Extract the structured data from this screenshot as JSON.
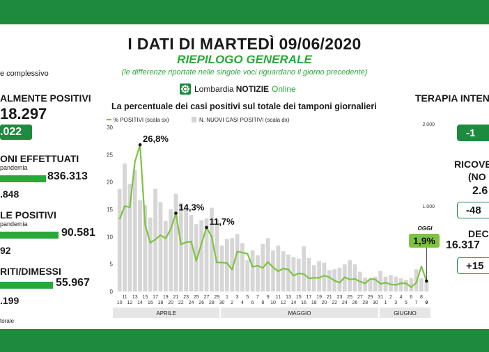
{
  "header": {
    "title": "I DATI DI MARTEDÌ 09/06/2020",
    "subtitle": "RIEPILOGO GENERALE",
    "note": "(le differenze riportate nelle singole voci riguardano il giorno precedente)",
    "logo": {
      "brand": "Lombardia",
      "bold": "NOTIZIE",
      "online": "Online"
    }
  },
  "left_panel": {
    "caption_top": "e complessivo",
    "attualmente_positivi": {
      "label": "ALMENTE POSITIVI",
      "value": "18.297",
      "diff": ".022"
    },
    "tamponi": {
      "label": "ONI EFFETTUATI",
      "sub": "pandemia",
      "value": "836.313",
      "diff": ".848"
    },
    "totale_positivi": {
      "label": "LE POSITIVI",
      "sub": "pandemia",
      "value": "90.581",
      "diff": "92"
    },
    "guariti": {
      "label": "RITI/DIMESSI",
      "value": "55.967",
      "diff": ".199"
    },
    "footer": "torale"
  },
  "right_panel": {
    "terapia": {
      "label": "TERAPIA INTEN",
      "diff": "-1"
    },
    "ricoverati": {
      "label": "RICOVE",
      "label2": "(NO",
      "value": "2.6",
      "diff": "-48"
    },
    "decessi": {
      "label": "DEC",
      "value": "16.317",
      "diff": "+15"
    }
  },
  "chart_data": {
    "type": "bar+line",
    "title": "La percentuale dei casi positivi sul totale dei tamponi giornalieri",
    "legend": [
      {
        "name": "% POSITIVI (scala sx)",
        "color": "#7dc242"
      },
      {
        "name": "N. NUOVI CASI POSITIVI (scala dx)",
        "color": "#d3d3d3"
      }
    ],
    "y_left": {
      "range": [
        0,
        30
      ],
      "ticks": [
        0,
        5,
        10,
        15,
        20,
        25,
        30
      ]
    },
    "y_right": {
      "range": [
        0,
        2000
      ],
      "ticks": [
        "1.000",
        "2.000"
      ]
    },
    "x_top_labels": [
      "11",
      "13",
      "15",
      "17",
      "19",
      "21",
      "23",
      "25",
      "27",
      "29",
      "1",
      "3",
      "5",
      "7",
      "9",
      "11",
      "13",
      "15",
      "17",
      "19",
      "21",
      "23",
      "25",
      "27",
      "29",
      "31",
      "2",
      "4",
      "6",
      "8"
    ],
    "x_bottom_labels": [
      "10",
      "12",
      "14",
      "16",
      "18",
      "20",
      "22",
      "24",
      "26",
      "28",
      "30",
      "2",
      "4",
      "6",
      "8",
      "10",
      "12",
      "14",
      "16",
      "18",
      "20",
      "22",
      "24",
      "26",
      "28",
      "30",
      "1",
      "3",
      "5",
      "7",
      "9"
    ],
    "months": [
      "APRILE",
      "MAGGIO",
      "GIUGNO"
    ],
    "bars": [
      1250,
      1560,
      1310,
      1480,
      1110,
      1050,
      900,
      1250,
      1090,
      860,
      1000,
      1190,
      1080,
      1020,
      930,
      820,
      870,
      890,
      1020,
      880,
      560,
      640,
      650,
      700,
      590,
      380,
      500,
      440,
      580,
      650,
      500,
      560,
      490,
      450,
      420,
      400,
      550,
      410,
      320,
      370,
      350,
      260,
      270,
      290,
      330,
      380,
      330,
      240,
      170,
      140,
      180,
      250,
      180,
      200,
      180,
      160,
      140,
      160,
      270,
      160,
      120
    ],
    "line": [
      13.2,
      15.6,
      15.4,
      23.7,
      26.8,
      12.2,
      8.9,
      9.5,
      10.3,
      9.7,
      11.4,
      14.3,
      8.6,
      9.0,
      9.1,
      5.6,
      8.7,
      11.7,
      10.0,
      5.3,
      5.3,
      5.2,
      4.0,
      7.3,
      7.1,
      6.9,
      4.5,
      4.7,
      4.3,
      5.4,
      4.4,
      3.7,
      4.2,
      4.0,
      2.9,
      3.3,
      3.2,
      2.4,
      2.5,
      2.5,
      2.9,
      2.6,
      2.0,
      1.6,
      2.6,
      2.2,
      2.3,
      1.8,
      1.5,
      2.3,
      2.2,
      1.4,
      1.6,
      1.3,
      1.2,
      1.5,
      1.5,
      0.8,
      1.6,
      4.6,
      1.9
    ],
    "annotations": [
      {
        "label": "26,8%",
        "index": 4
      },
      {
        "label": "14,3%",
        "index": 11
      },
      {
        "label": "11,7%",
        "index": 17
      }
    ],
    "today": {
      "label": "OGGI",
      "value": "1,9%",
      "index": 60
    }
  }
}
